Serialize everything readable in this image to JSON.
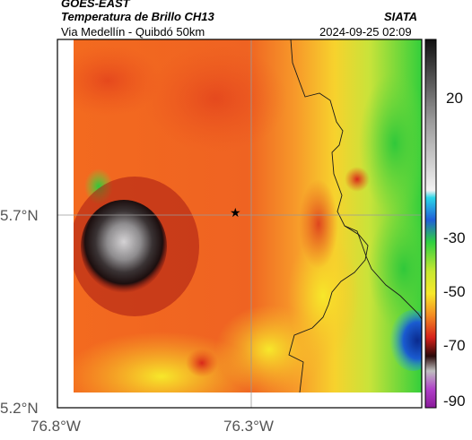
{
  "header": {
    "satellite": "GOES-EAST",
    "product": "Temperatura de Brillo CH13",
    "region": "Via Medellín - Quibdó 50km",
    "agency": "SIATA",
    "datetime": "2024-09-25 02:09"
  },
  "axes": {
    "y_ticks": [
      "5.7°N",
      "5.2°N"
    ],
    "x_ticks": [
      "76.8°W",
      "76.3°W"
    ]
  },
  "colorbar": {
    "labels": [
      "20",
      "-30",
      "-50",
      "-70",
      "-90"
    ]
  },
  "marker": {
    "symbol": "★"
  },
  "colors": {
    "warm": "#f47a23",
    "warmer": "#e8461c",
    "yellow": "#f7e82a",
    "green": "#3fd33a",
    "cold_blue": "#1b3f9e",
    "cloud_dark": "#1a1010",
    "cloud_light": "#c8c6c8",
    "coast": "#1a1a1a"
  }
}
